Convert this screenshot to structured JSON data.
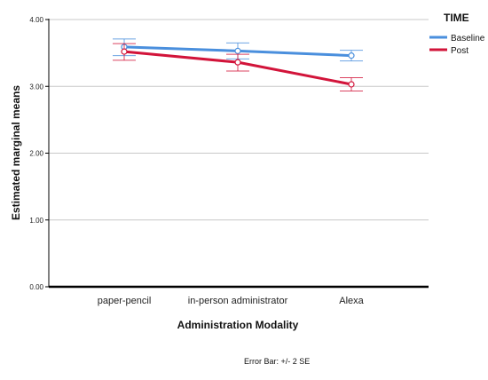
{
  "chart_data": {
    "type": "line",
    "title": "",
    "xlabel": "Administration Modality",
    "ylabel": "Estimated marginal means",
    "categories": [
      "paper-pencil",
      "in-person administrator",
      "Alexa"
    ],
    "ylim": [
      0,
      4
    ],
    "yticks": [
      0,
      1,
      2,
      3,
      4
    ],
    "ytick_labels": [
      "0.00",
      "1.00",
      "2.00",
      "3.00",
      "4.00"
    ],
    "grid": true,
    "legend": {
      "title": "TIME",
      "placement": "top-right"
    },
    "series": [
      {
        "name": "Baseline",
        "color": "#4a8fdd",
        "values": [
          3.59,
          3.53,
          3.46
        ],
        "error_low": [
          3.46,
          3.41,
          3.38
        ],
        "error_high": [
          3.71,
          3.65,
          3.54
        ]
      },
      {
        "name": "Post",
        "color": "#d2143a",
        "values": [
          3.52,
          3.36,
          3.03
        ],
        "error_low": [
          3.39,
          3.23,
          2.93
        ],
        "error_high": [
          3.64,
          3.48,
          3.13
        ]
      }
    ],
    "footnote": "Error Bar: +/- 2 SE"
  }
}
